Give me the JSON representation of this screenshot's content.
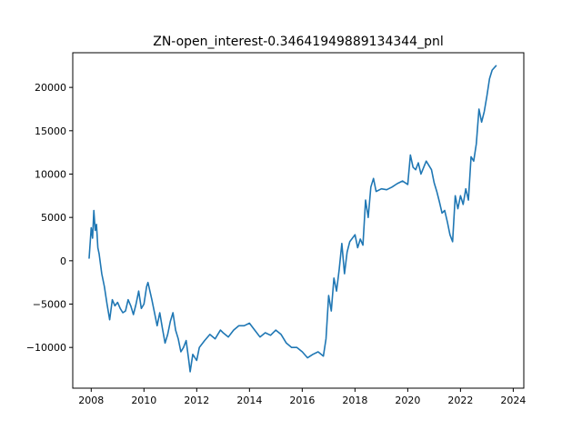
{
  "chart_data": {
    "type": "line",
    "title": "ZN-open_interest-0.34641949889134344_pnl",
    "xlabel": "",
    "ylabel": "",
    "xlim": [
      2007.3,
      2024.4
    ],
    "ylim": [
      -14700,
      24000
    ],
    "x_ticks": [
      2008,
      2010,
      2012,
      2014,
      2016,
      2018,
      2020,
      2022,
      2024
    ],
    "x_tick_labels": [
      "2008",
      "2010",
      "2012",
      "2014",
      "2016",
      "2018",
      "2020",
      "2022",
      "2024"
    ],
    "y_ticks": [
      -10000,
      -5000,
      0,
      5000,
      10000,
      15000,
      20000
    ],
    "y_tick_labels": [
      "−10000",
      "−5000",
      "0",
      "5000",
      "10000",
      "15000",
      "20000"
    ],
    "grid": false,
    "series": [
      {
        "color": "#1f77b4",
        "x": [
          2007.92,
          2008.0,
          2008.05,
          2008.1,
          2008.15,
          2008.2,
          2008.25,
          2008.3,
          2008.4,
          2008.5,
          2008.6,
          2008.7,
          2008.8,
          2008.9,
          2009.0,
          2009.1,
          2009.2,
          2009.3,
          2009.4,
          2009.5,
          2009.6,
          2009.7,
          2009.8,
          2009.9,
          2010.0,
          2010.1,
          2010.15,
          2010.3,
          2010.4,
          2010.5,
          2010.6,
          2010.7,
          2010.8,
          2010.9,
          2011.0,
          2011.1,
          2011.2,
          2011.3,
          2011.4,
          2011.5,
          2011.6,
          2011.7,
          2011.75,
          2011.85,
          2012.0,
          2012.1,
          2012.3,
          2012.5,
          2012.7,
          2012.9,
          2013.0,
          2013.2,
          2013.4,
          2013.6,
          2013.8,
          2014.0,
          2014.2,
          2014.4,
          2014.6,
          2014.8,
          2015.0,
          2015.2,
          2015.4,
          2015.6,
          2015.8,
          2016.0,
          2016.2,
          2016.4,
          2016.6,
          2016.8,
          2016.9,
          2017.0,
          2017.1,
          2017.2,
          2017.3,
          2017.4,
          2017.5,
          2017.6,
          2017.7,
          2017.8,
          2018.0,
          2018.1,
          2018.2,
          2018.3,
          2018.4,
          2018.5,
          2018.6,
          2018.7,
          2018.8,
          2019.0,
          2019.2,
          2019.4,
          2019.6,
          2019.8,
          2020.0,
          2020.1,
          2020.2,
          2020.3,
          2020.4,
          2020.5,
          2020.7,
          2020.9,
          2021.0,
          2021.1,
          2021.2,
          2021.3,
          2021.4,
          2021.5,
          2021.6,
          2021.7,
          2021.8,
          2021.9,
          2022.0,
          2022.1,
          2022.2,
          2022.3,
          2022.4,
          2022.5,
          2022.6,
          2022.7,
          2022.8,
          2022.9,
          2023.0,
          2023.1,
          2023.2,
          2023.35
        ],
        "values": [
          300,
          3800,
          2600,
          5800,
          3500,
          4200,
          1500,
          800,
          -1500,
          -3000,
          -5000,
          -6800,
          -4500,
          -5200,
          -4800,
          -5500,
          -6000,
          -5800,
          -4500,
          -5200,
          -6200,
          -5000,
          -3500,
          -5500,
          -5000,
          -3000,
          -2500,
          -4500,
          -6000,
          -7500,
          -6000,
          -7800,
          -9500,
          -8500,
          -7000,
          -6000,
          -8000,
          -9000,
          -10500,
          -10000,
          -9200,
          -11500,
          -12800,
          -10800,
          -11500,
          -10000,
          -9200,
          -8500,
          -9000,
          -8000,
          -8300,
          -8800,
          -8000,
          -7500,
          -7500,
          -7200,
          -8000,
          -8800,
          -8300,
          -8600,
          -8000,
          -8500,
          -9500,
          -10000,
          -10000,
          -10500,
          -11200,
          -10800,
          -10500,
          -11000,
          -9000,
          -4000,
          -5800,
          -2000,
          -3500,
          -1000,
          2000,
          -1500,
          1000,
          2200,
          3000,
          1500,
          2500,
          1800,
          7000,
          5000,
          8500,
          9500,
          8000,
          8300,
          8200,
          8500,
          8900,
          9200,
          8800,
          12200,
          10800,
          10500,
          11300,
          10000,
          11500,
          10500,
          9000,
          8000,
          6800,
          5500,
          5800,
          4500,
          3000,
          2200,
          7500,
          6000,
          7500,
          6500,
          8300,
          7000,
          12000,
          11500,
          13500,
          17500,
          16000,
          17200,
          19000,
          21000,
          22000,
          22500
        ]
      }
    ]
  }
}
